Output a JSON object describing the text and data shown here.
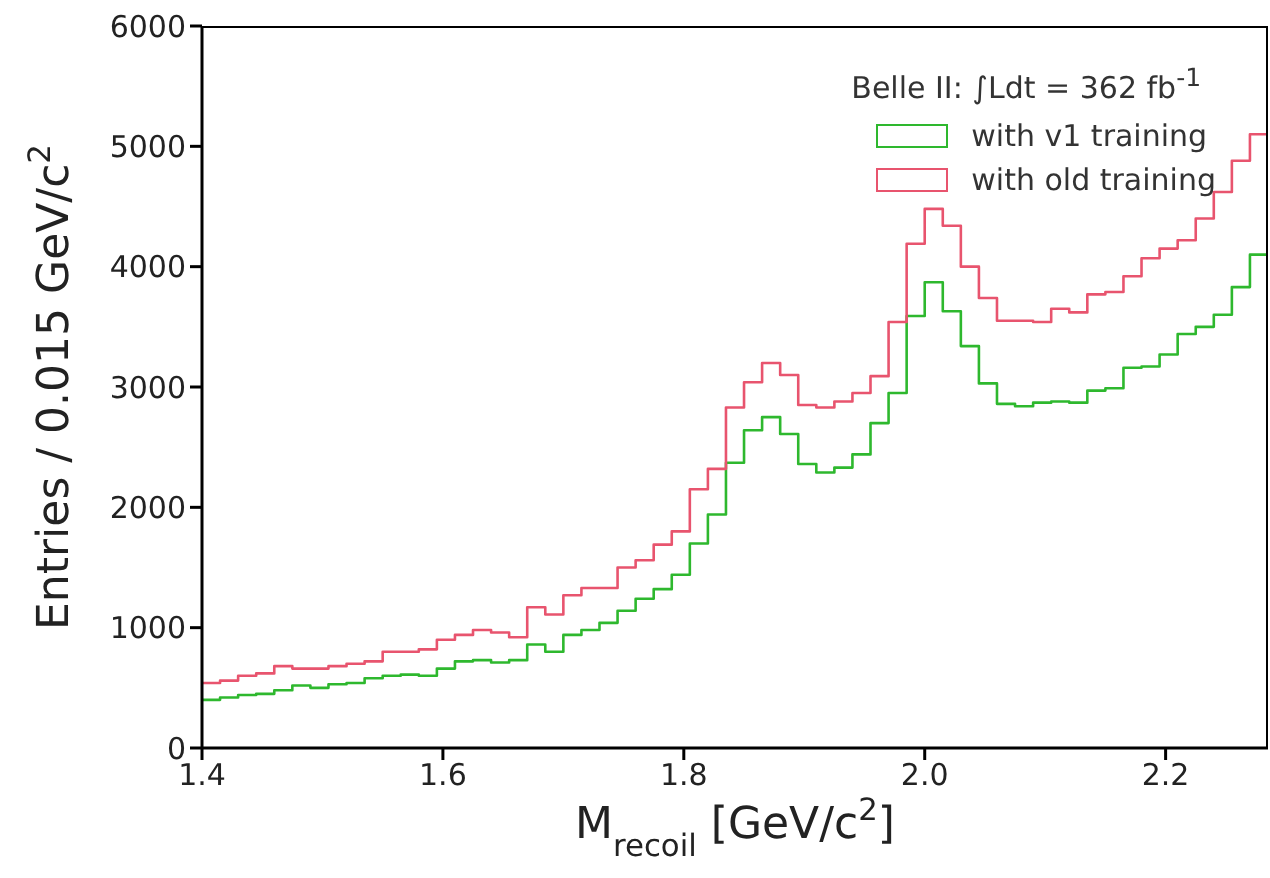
{
  "chart_data": {
    "type": "histogram",
    "xlabel": "M$_{recoil}$ [GeV/c$^{2}$]",
    "ylabel": "Entries / 0.015 GeV/c$^{2}$",
    "legend_title": "Belle II: ∫Ldt = 362 fb$^{-1}$",
    "legend": "top right",
    "grid": false,
    "bins": [
      1.4,
      1.415,
      1.43,
      1.445,
      1.46,
      1.475,
      1.49,
      1.505,
      1.52,
      1.535,
      1.55,
      1.565,
      1.58,
      1.595,
      1.61,
      1.625,
      1.64,
      1.655,
      1.67,
      1.685,
      1.7,
      1.715,
      1.73,
      1.745,
      1.76,
      1.775,
      1.79,
      1.805,
      1.82,
      1.835,
      1.85,
      1.865,
      1.88,
      1.895,
      1.91,
      1.925,
      1.94,
      1.955,
      1.97,
      1.985,
      2.0,
      2.015,
      2.03,
      2.045,
      2.06,
      2.075,
      2.09,
      2.105,
      2.12,
      2.135,
      2.15,
      2.165,
      2.18,
      2.195,
      2.21,
      2.225,
      2.24,
      2.255,
      2.27,
      2.285
    ],
    "series": [
      {
        "name": "with v1 training",
        "color": "#2eb82e",
        "values": [
          400,
          420,
          440,
          450,
          480,
          520,
          500,
          530,
          540,
          580,
          600,
          610,
          600,
          660,
          720,
          730,
          710,
          730,
          860,
          800,
          940,
          980,
          1040,
          1140,
          1240,
          1320,
          1440,
          1700,
          1940,
          2370,
          2640,
          2750,
          2610,
          2360,
          2290,
          2330,
          2440,
          2700,
          2950,
          3590,
          3870,
          3630,
          3340,
          3030,
          2860,
          2840,
          2870,
          2880,
          2870,
          2970,
          2990,
          3160,
          3170,
          3270,
          3440,
          3500,
          3600,
          3830,
          4100
        ]
      },
      {
        "name": "with old training",
        "color": "#e8546e",
        "values": [
          540,
          560,
          600,
          620,
          680,
          660,
          660,
          680,
          700,
          720,
          800,
          800,
          820,
          900,
          940,
          980,
          960,
          920,
          1170,
          1110,
          1270,
          1330,
          1330,
          1500,
          1560,
          1690,
          1800,
          2150,
          2320,
          2830,
          3040,
          3200,
          3100,
          2850,
          2830,
          2880,
          2950,
          3090,
          3540,
          4190,
          4480,
          4340,
          4000,
          3740,
          3550,
          3550,
          3540,
          3650,
          3620,
          3770,
          3790,
          3920,
          4070,
          4150,
          4220,
          4400,
          4620,
          4880,
          5100
        ]
      }
    ],
    "xlim": [
      1.4,
      2.285
    ],
    "xticks": [
      1.4,
      1.6,
      1.8,
      {
        "value": 2,
        "label": "2.0"
      },
      2.2
    ],
    "ylim": [
      0,
      6000
    ],
    "yticks": [
      0,
      1000,
      2000,
      3000,
      4000,
      5000,
      6000
    ]
  }
}
